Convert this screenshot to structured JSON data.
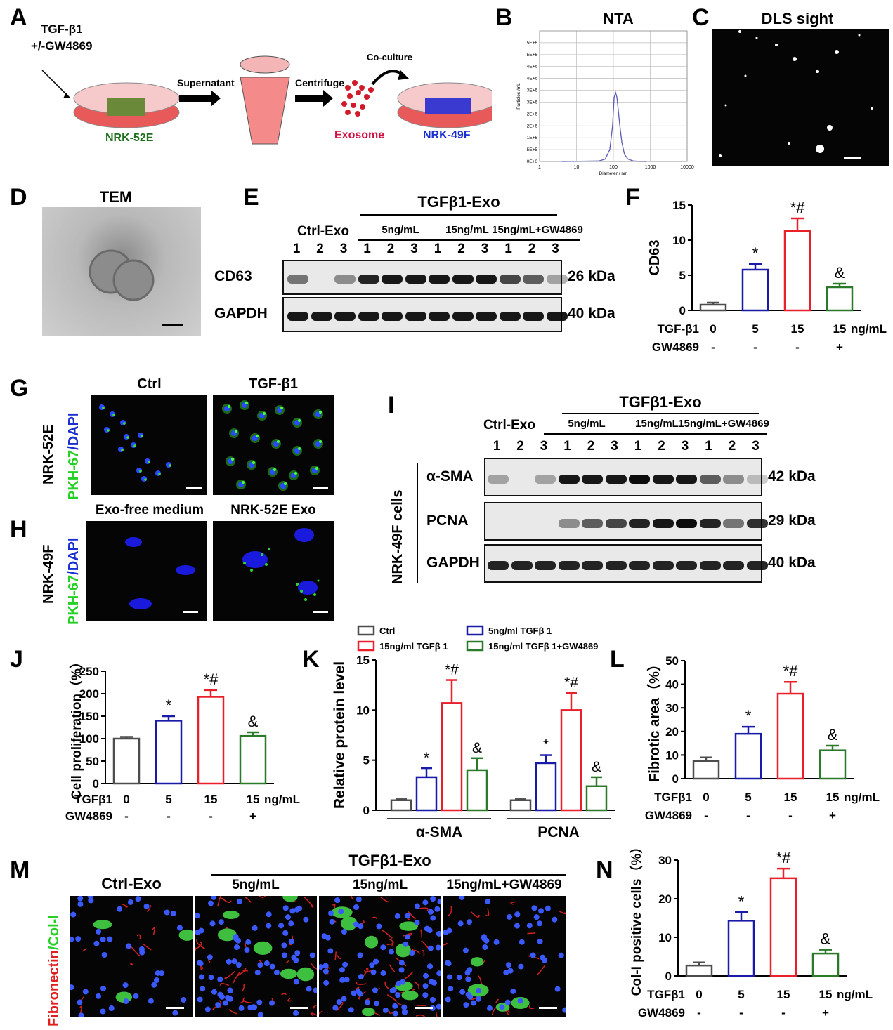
{
  "panels": {
    "A": {
      "letter": "A",
      "treatment_line1": "TGF-β1",
      "treatment_line2": "+/-GW4869",
      "step1": "Supernatant",
      "step2": "Centrifuge",
      "step3": "Co-culture",
      "cell1": "NRK-52E",
      "exosome": "Exosome",
      "cell2": "NRK-49F",
      "colors": {
        "cell1": "#1f6f1f",
        "exosome": "#d01040",
        "cell2": "#1a2fd0"
      }
    },
    "B": {
      "letter": "B",
      "title": "NTA",
      "ylabel": "Particles /mL",
      "xlabel": "Diameter / nm",
      "yticks": [
        "0E+0",
        "5E+5",
        "1E+6",
        "2E+6",
        "2E+6",
        "3E+6",
        "3E+6",
        "4E+6",
        "4E+6",
        "5E+6",
        "5E+6"
      ],
      "xticks": [
        "1",
        "10",
        "100",
        "1000",
        "10000"
      ]
    },
    "C": {
      "letter": "C",
      "title": "DLS sight"
    },
    "D": {
      "letter": "D",
      "title": "TEM"
    },
    "E": {
      "letter": "E",
      "header": "TGFβ1-Exo",
      "groups": [
        "Ctrl-Exo",
        "5ng/mL",
        "15ng/mL",
        "15ng/mL+GW4869"
      ],
      "lanes": [
        "1",
        "2",
        "3",
        "1",
        "2",
        "3",
        "1",
        "2",
        "3",
        "1",
        "2",
        "3"
      ],
      "rows": [
        {
          "label": "CD63",
          "kda": "26 kDa"
        },
        {
          "label": "GAPDH",
          "kda": "40 kDa"
        }
      ]
    },
    "F": {
      "letter": "F"
    },
    "G": {
      "letter": "G",
      "side": "NRK-52E",
      "stain_green": "PKH-67",
      "stain_blue": "/DAPI",
      "col1": "Ctrl",
      "col2": "TGF-β1"
    },
    "H": {
      "letter": "H",
      "side": "NRK-49F",
      "stain_green": "PKH-67",
      "stain_blue": "/DAPI",
      "col1": "Exo-free medium",
      "col2": "NRK-52E Exo"
    },
    "I": {
      "letter": "I",
      "header": "TGFβ1-Exo",
      "groups": [
        "Ctrl-Exo",
        "5ng/mL",
        "15ng/mL",
        "15ng/mL+GW4869"
      ],
      "lanes": [
        "1",
        "2",
        "3",
        "1",
        "2",
        "3",
        "1",
        "2",
        "3",
        "1",
        "2",
        "3"
      ],
      "side": "NRK-49F cells",
      "rows": [
        {
          "label": "α-SMA",
          "kda": "42 kDa"
        },
        {
          "label": "PCNA",
          "kda": "29 kDa"
        },
        {
          "label": "GAPDH",
          "kda": "40 kDa"
        }
      ]
    },
    "J": {
      "letter": "J"
    },
    "K": {
      "letter": "K",
      "legend": [
        "Ctrl",
        "5ng/ml TGFβ 1",
        "15ng/ml TGFβ 1",
        "15ng/ml TGFβ 1+GW4869"
      ]
    },
    "L": {
      "letter": "L"
    },
    "M": {
      "letter": "M",
      "header": "TGFβ1-Exo",
      "cols": [
        "Ctrl-Exo",
        "5ng/mL",
        "15ng/mL",
        "15ng/mL+GW4869"
      ],
      "side_red": "Fibronectin",
      "side_green": "/Col-I"
    },
    "N": {
      "letter": "N"
    }
  },
  "colors": {
    "ctrl": "#4d4d4d",
    "low": "#1a1aa8",
    "high": "#e8202a",
    "gw": "#2a7a2a",
    "nta_line": "#5a5ab4"
  },
  "chart_data": [
    {
      "panel": "B",
      "type": "line",
      "title": "NTA",
      "xlabel": "Diameter / nm",
      "ylabel": "Particles /mL",
      "xscale": "log",
      "xlim": [
        1,
        10000
      ],
      "ylim": [
        0,
        5500000
      ],
      "x": [
        4,
        40,
        60,
        80,
        95,
        105,
        115,
        125,
        135,
        150,
        170,
        200,
        250,
        350,
        500,
        800
      ],
      "series": [
        {
          "values": [
            0,
            20000,
            100000,
            500000,
            1500000,
            2700000,
            2900000,
            2700000,
            2200000,
            1500000,
            800000,
            300000,
            100000,
            20000,
            5000,
            0
          ]
        }
      ]
    },
    {
      "panel": "F",
      "type": "bar",
      "ylabel": "CD63",
      "ylim": [
        0,
        15
      ],
      "yticks": [
        0,
        5,
        10,
        15
      ],
      "row1_label": "TGF-β1",
      "row2_label": "GW4869",
      "unit": "ng/mL",
      "categories": [
        "0",
        "5",
        "15",
        "15"
      ],
      "gw": [
        "-",
        "-",
        "-",
        "+"
      ],
      "values": [
        0.8,
        5.8,
        11.3,
        3.3
      ],
      "errors": [
        0.3,
        0.8,
        1.8,
        0.5
      ],
      "marks": [
        "",
        "*",
        "*#",
        "&"
      ]
    },
    {
      "panel": "J",
      "type": "bar",
      "ylabel": "Cell proliferation（%）",
      "ylim": [
        0,
        250
      ],
      "yticks": [
        0,
        50,
        100,
        150,
        200,
        250
      ],
      "row1_label": "TGFβ1",
      "row2_label": "GW4869",
      "unit": "ng/mL",
      "categories": [
        "0",
        "5",
        "15",
        "15"
      ],
      "gw": [
        "-",
        "-",
        "-",
        "+"
      ],
      "values": [
        100,
        140,
        193,
        106
      ],
      "errors": [
        4,
        10,
        15,
        8
      ],
      "marks": [
        "",
        "*",
        "*#",
        "&"
      ]
    },
    {
      "panel": "K",
      "type": "bar",
      "ylabel": "Relative protein level",
      "ylim": [
        0,
        15
      ],
      "yticks": [
        0,
        5,
        10,
        15
      ],
      "categories": [
        "α-SMA",
        "PCNA"
      ],
      "series": [
        {
          "name": "Ctrl",
          "values": [
            1.0,
            1.0
          ],
          "errors": [
            0.1,
            0.1
          ],
          "marks": [
            "",
            ""
          ]
        },
        {
          "name": "5ng/ml TGFβ 1",
          "values": [
            3.3,
            4.7
          ],
          "errors": [
            0.9,
            0.8
          ],
          "marks": [
            "*",
            "*"
          ]
        },
        {
          "name": "15ng/ml TGFβ 1",
          "values": [
            10.7,
            10.0
          ],
          "errors": [
            2.3,
            1.7
          ],
          "marks": [
            "*#",
            "*#"
          ]
        },
        {
          "name": "15ng/ml TGFβ 1+GW4869",
          "values": [
            4.0,
            2.4
          ],
          "errors": [
            1.2,
            0.9
          ],
          "marks": [
            "&",
            "&"
          ]
        }
      ]
    },
    {
      "panel": "L",
      "type": "bar",
      "ylabel": "Fibrotic area（%）",
      "ylim": [
        0,
        50
      ],
      "yticks": [
        0,
        10,
        20,
        30,
        40,
        50
      ],
      "row1_label": "TGFβ1",
      "row2_label": "GW4869",
      "unit": "ng/mL",
      "categories": [
        "0",
        "5",
        "15",
        "15"
      ],
      "gw": [
        "-",
        "-",
        "-",
        "+"
      ],
      "values": [
        7.5,
        19,
        36,
        12
      ],
      "errors": [
        1.5,
        3,
        5,
        2
      ],
      "marks": [
        "",
        "*",
        "*#",
        "&"
      ]
    },
    {
      "panel": "N",
      "type": "bar",
      "ylabel": "Col-I positive cells（%）",
      "ylim": [
        0,
        30
      ],
      "yticks": [
        0,
        10,
        20,
        30
      ],
      "row1_label": "TGFβ1",
      "row2_label": "GW4869",
      "unit": "ng/mL",
      "categories": [
        "0",
        "5",
        "15",
        "15"
      ],
      "gw": [
        "-",
        "-",
        "-",
        "+"
      ],
      "values": [
        2.7,
        14.3,
        25.3,
        5.8
      ],
      "errors": [
        0.8,
        2.2,
        2.5,
        1.0
      ],
      "marks": [
        "",
        "*",
        "*#",
        "&"
      ]
    }
  ]
}
